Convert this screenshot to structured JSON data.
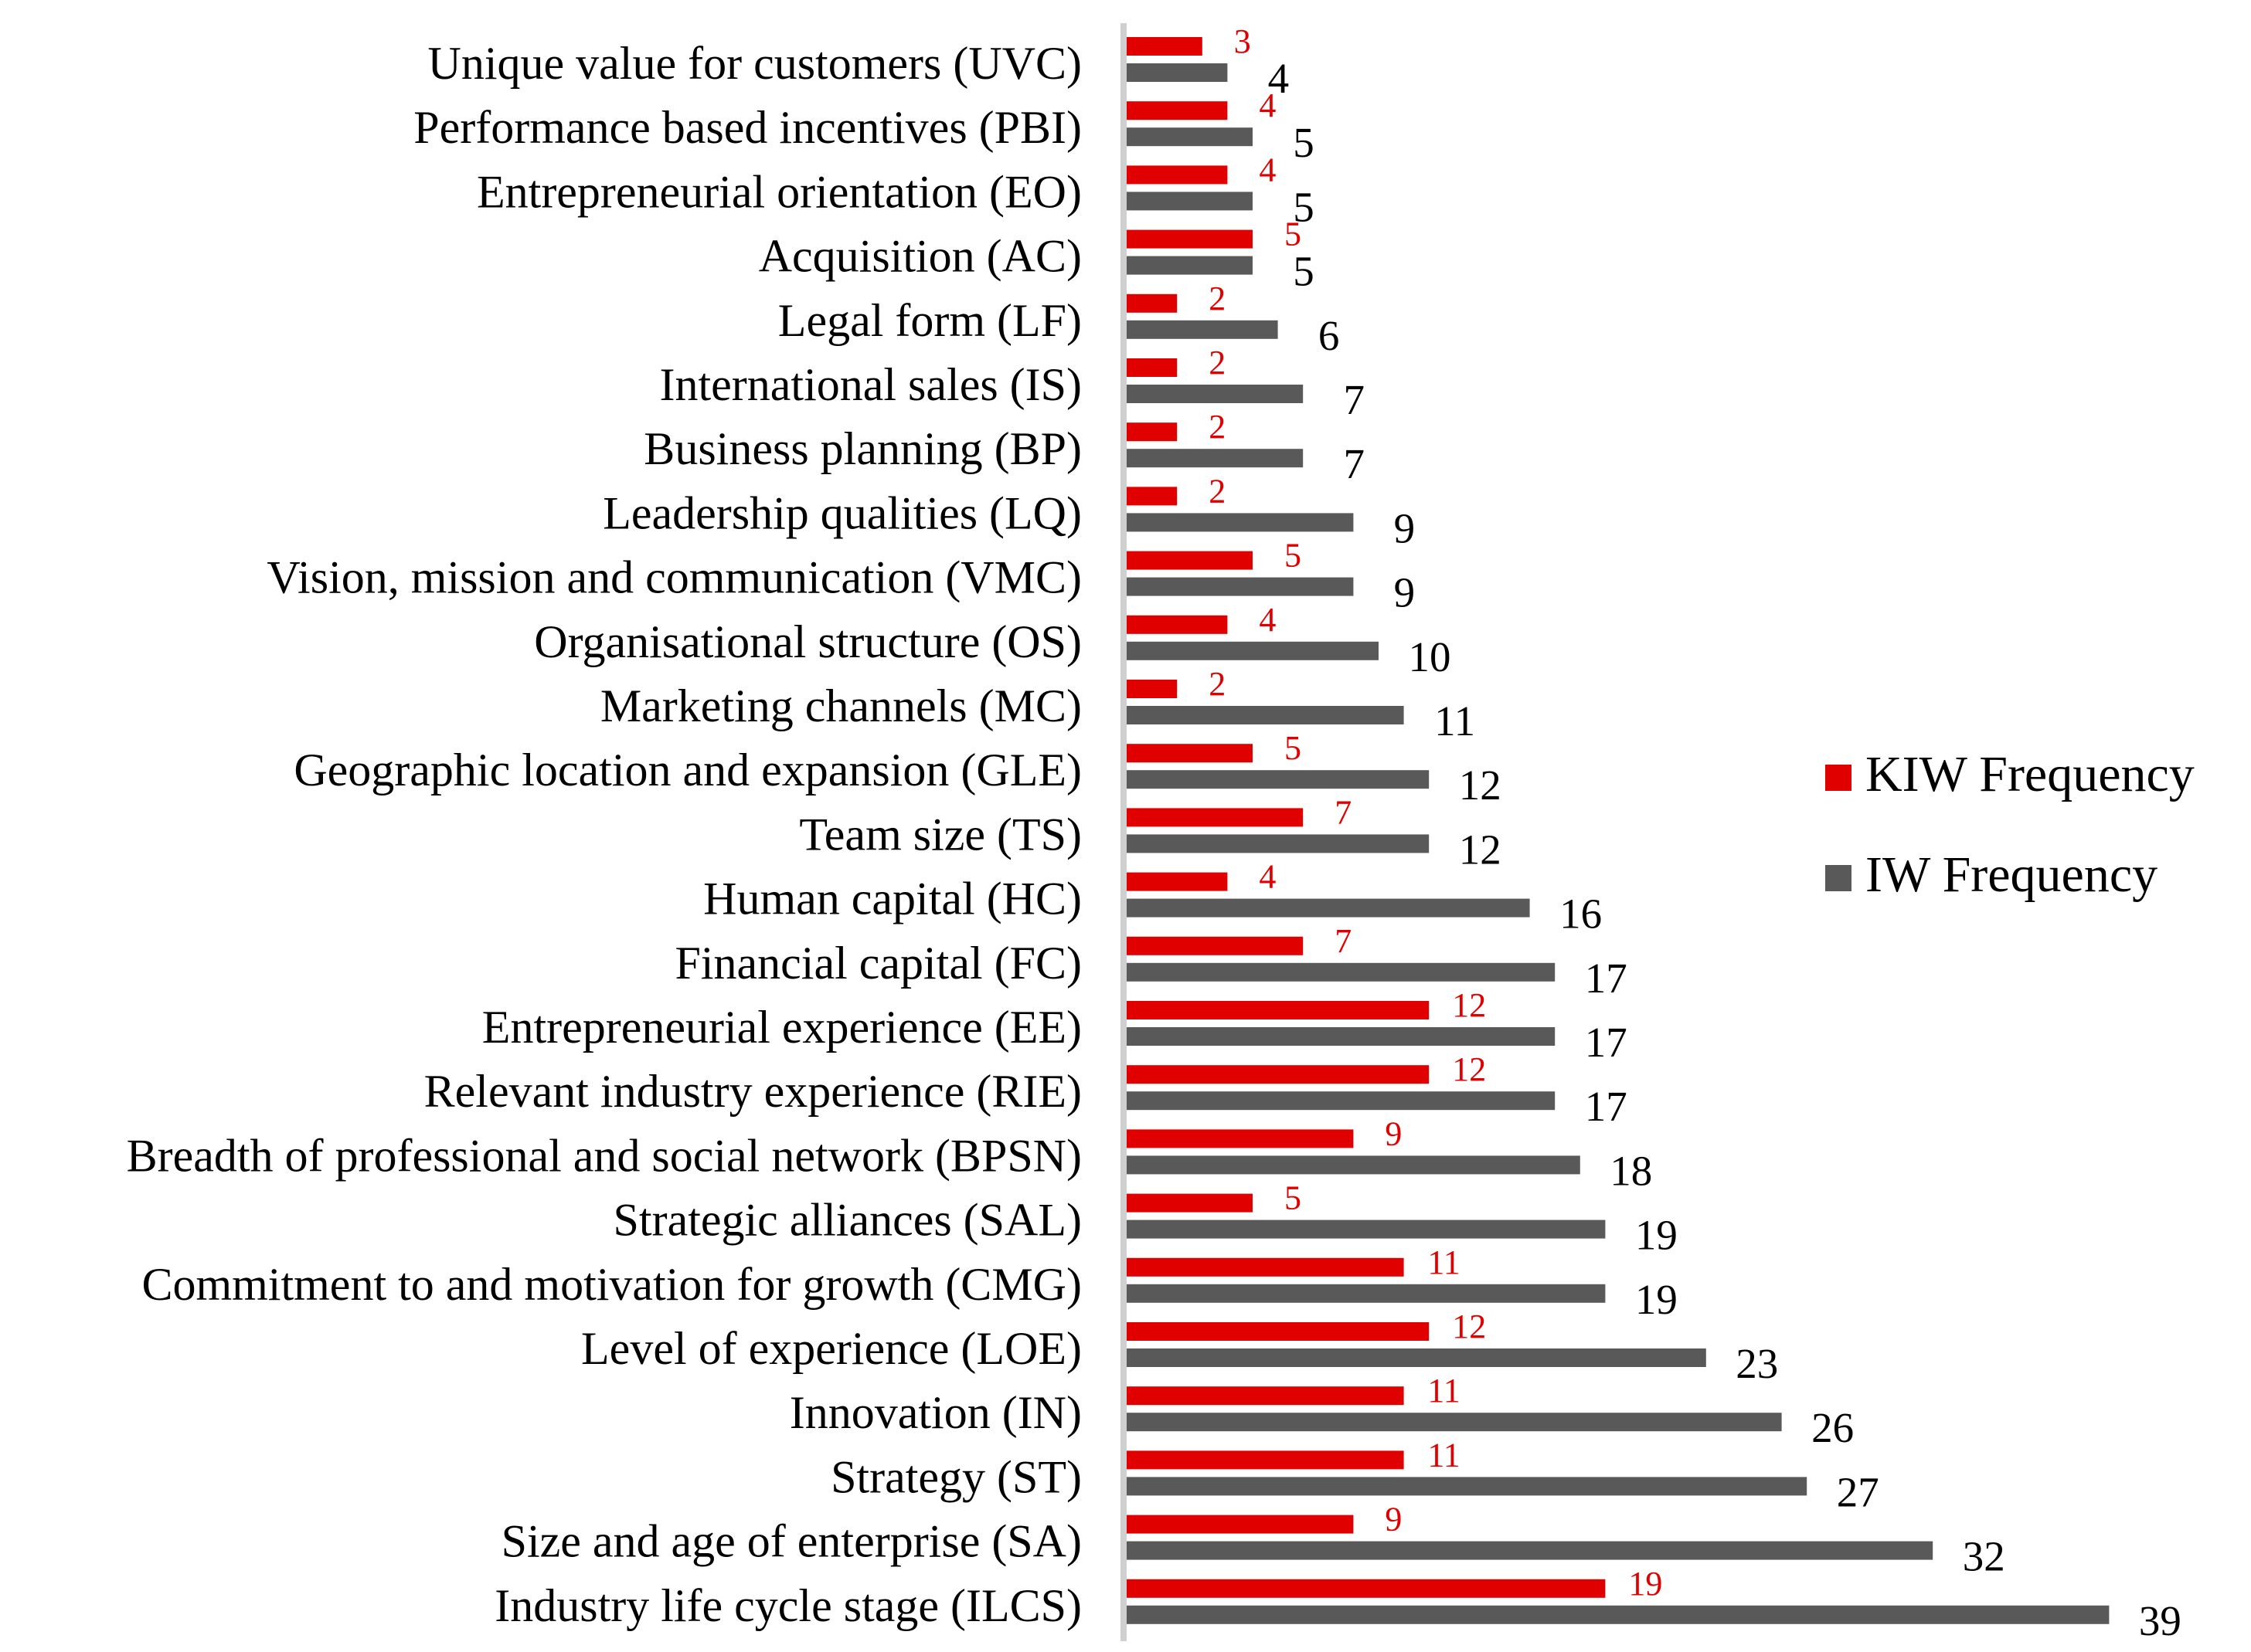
{
  "chart_data": {
    "type": "bar",
    "orientation": "horizontal",
    "title": "",
    "xlabel": "",
    "ylabel": "",
    "xlim": [
      0,
      40
    ],
    "grid": false,
    "legend_position": "right",
    "categories": [
      "Unique value for customers (UVC)",
      "Performance based incentives (PBI)",
      "Entrepreneurial orientation (EO)",
      "Acquisition (AC)",
      "Legal form (LF)",
      "International sales (IS)",
      "Business planning (BP)",
      "Leadership qualities (LQ)",
      "Vision, mission and communication (VMC)",
      "Organisational structure (OS)",
      "Marketing channels (MC)",
      "Geographic location and expansion (GLE)",
      "Team size (TS)",
      "Human capital (HC)",
      "Financial capital (FC)",
      "Entrepreneurial experience (EE)",
      "Relevant industry experience (RIE)",
      "Breadth of professional and social network (BPSN)",
      "Strategic alliances (SAL)",
      "Commitment to and motivation for growth (CMG)",
      "Level of experience (LOE)",
      "Innovation (IN)",
      "Strategy (ST)",
      "Size and age of enterprise (SA)",
      "Industry life cycle stage (ILCS)"
    ],
    "series": [
      {
        "name": "KIW Frequency",
        "color": "#e00000",
        "values": [
          3,
          4,
          4,
          5,
          2,
          2,
          2,
          2,
          5,
          4,
          2,
          5,
          7,
          4,
          7,
          12,
          12,
          9,
          5,
          11,
          12,
          11,
          11,
          9,
          19
        ]
      },
      {
        "name": "IW Frequency",
        "color": "#595959",
        "values": [
          4,
          5,
          5,
          5,
          6,
          7,
          7,
          9,
          9,
          10,
          11,
          12,
          12,
          16,
          17,
          17,
          17,
          18,
          19,
          19,
          23,
          26,
          27,
          32,
          39
        ]
      }
    ],
    "axis_color": "#d0d0d0"
  }
}
